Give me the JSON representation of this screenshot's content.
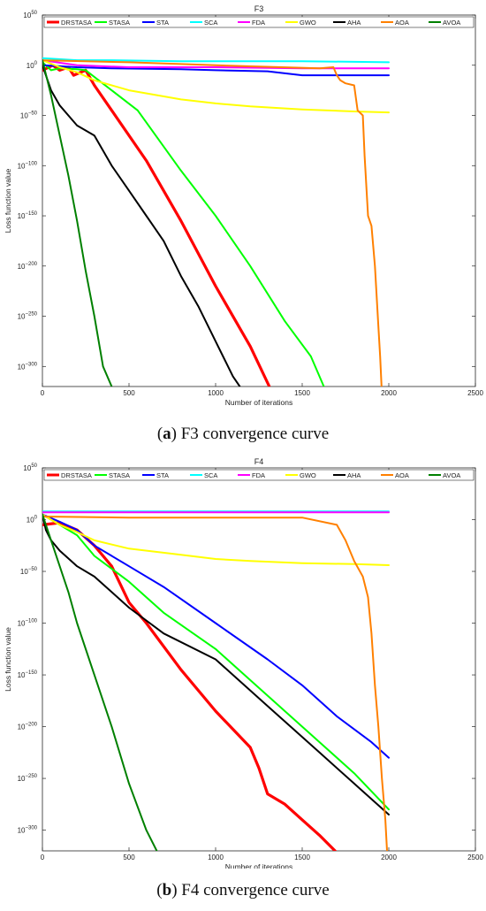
{
  "chart_data": [
    {
      "type": "line",
      "title": "F3",
      "xlabel": "Number of iterations",
      "ylabel": "Loss function value",
      "xlim": [
        0,
        2500
      ],
      "ylim_log10": [
        -320,
        50
      ],
      "y_scale": "log",
      "x_ticks": [
        0,
        500,
        1000,
        1500,
        2000,
        2500
      ],
      "y_ticks_exp": [
        50,
        0,
        -50,
        -100,
        -150,
        -200,
        -250,
        -300
      ],
      "legend": "top, horizontal",
      "caption_letter": "a",
      "caption_text": " F3 convergence curve",
      "series": [
        {
          "name": "DRSTASA",
          "color": "#ff0000",
          "width": 3.2,
          "x": [
            0,
            60,
            100,
            150,
            180,
            250,
            300,
            400,
            600,
            800,
            1000,
            1200,
            1310
          ],
          "log10_y": [
            -5,
            0,
            -5,
            -2,
            -10,
            -5,
            -20,
            -45,
            -95,
            -155,
            -220,
            -280,
            -320
          ]
        },
        {
          "name": "STASA",
          "color": "#00ff00",
          "width": 2,
          "x": [
            0,
            50,
            100,
            200,
            250,
            550,
            800,
            1000,
            1200,
            1400,
            1550,
            1625
          ],
          "log10_y": [
            3,
            -5,
            -3,
            -4,
            -5,
            -45,
            -105,
            -150,
            -200,
            -255,
            -290,
            -320
          ]
        },
        {
          "name": "STA",
          "color": "#0000ff",
          "width": 2,
          "x": [
            0,
            200,
            400,
            800,
            1000,
            1300,
            1500,
            2000
          ],
          "log10_y": [
            0,
            -2,
            -3,
            -4,
            -5,
            -6,
            -10,
            -10
          ]
        },
        {
          "name": "SCA",
          "color": "#00ffff",
          "width": 2,
          "x": [
            0,
            200,
            400,
            800,
            1000,
            1500,
            2000
          ],
          "log10_y": [
            7,
            5,
            5,
            4,
            4,
            4,
            3
          ]
        },
        {
          "name": "FDA",
          "color": "#ff00ff",
          "width": 2,
          "x": [
            0,
            200,
            500,
            1000,
            1500,
            2000
          ],
          "log10_y": [
            5,
            0,
            -2,
            -2,
            -3,
            -3
          ]
        },
        {
          "name": "GWO",
          "color": "#ffff00",
          "width": 2,
          "x": [
            0,
            100,
            200,
            300,
            500,
            800,
            1000,
            1200,
            1500,
            1800,
            2000
          ],
          "log10_y": [
            5,
            -2,
            -7,
            -15,
            -25,
            -34,
            -38,
            -41,
            -44,
            -46,
            -47
          ]
        },
        {
          "name": "AHA",
          "color": "#000000",
          "width": 2,
          "x": [
            0,
            30,
            50,
            100,
            200,
            300,
            400,
            500,
            600,
            700,
            800,
            900,
            1000,
            1100,
            1140
          ],
          "log10_y": [
            0,
            -15,
            -25,
            -40,
            -60,
            -70,
            -100,
            -125,
            -150,
            -175,
            -210,
            -240,
            -275,
            -310,
            -320
          ]
        },
        {
          "name": "AOA",
          "color": "#ff8000",
          "width": 2,
          "x": [
            0,
            500,
            1000,
            1600,
            1680,
            1700,
            1720,
            1750,
            1800,
            1820,
            1850,
            1860,
            1880,
            1900,
            1920,
            1940,
            1950,
            1958
          ],
          "log10_y": [
            5,
            3,
            0,
            -3,
            -2,
            -10,
            -15,
            -18,
            -20,
            -45,
            -50,
            -90,
            -150,
            -160,
            -200,
            -260,
            -290,
            -320
          ]
        },
        {
          "name": "AVOA",
          "color": "#008000",
          "width": 2,
          "x": [
            0,
            50,
            100,
            150,
            200,
            250,
            300,
            350,
            400
          ],
          "log10_y": [
            5,
            -30,
            -70,
            -110,
            -155,
            -205,
            -250,
            -300,
            -320
          ]
        }
      ]
    },
    {
      "type": "line",
      "title": "F4",
      "xlabel": "Number of iterations",
      "ylabel": "Loss function value",
      "xlim": [
        0,
        2500
      ],
      "ylim_log10": [
        -320,
        50
      ],
      "y_scale": "log",
      "x_ticks": [
        0,
        500,
        1000,
        1500,
        2000,
        2500
      ],
      "y_ticks_exp": [
        50,
        0,
        -50,
        -100,
        -150,
        -200,
        -250,
        -300
      ],
      "legend": "top, horizontal",
      "caption_letter": "b",
      "caption_text": " F4 convergence curve",
      "series": [
        {
          "name": "DRSTASA",
          "color": "#ff0000",
          "width": 3.2,
          "x": [
            0,
            100,
            200,
            300,
            400,
            500,
            600,
            800,
            1000,
            1200,
            1250,
            1300,
            1400,
            1500,
            1600,
            1690
          ],
          "log10_y": [
            -5,
            -3,
            -10,
            -25,
            -45,
            -80,
            -100,
            -145,
            -185,
            -220,
            -240,
            -265,
            -275,
            -290,
            -305,
            -320
          ]
        },
        {
          "name": "STASA",
          "color": "#00ff00",
          "width": 2,
          "x": [
            0,
            100,
            200,
            300,
            500,
            700,
            1000,
            1300,
            1600,
            1800,
            2000
          ],
          "log10_y": [
            5,
            -5,
            -15,
            -35,
            -60,
            -90,
            -125,
            -170,
            -215,
            -245,
            -280
          ]
        },
        {
          "name": "STA",
          "color": "#0000ff",
          "width": 2,
          "x": [
            0,
            100,
            200,
            300,
            500,
            700,
            1000,
            1300,
            1500,
            1700,
            1900,
            2000
          ],
          "log10_y": [
            5,
            -2,
            -10,
            -25,
            -45,
            -65,
            -100,
            -135,
            -160,
            -190,
            -215,
            -230
          ]
        },
        {
          "name": "SCA",
          "color": "#00ffff",
          "width": 2,
          "x": [
            0,
            500,
            1000,
            1500,
            2000
          ],
          "log10_y": [
            8,
            8,
            8,
            8,
            8
          ]
        },
        {
          "name": "FDA",
          "color": "#ff00ff",
          "width": 2,
          "x": [
            0,
            500,
            1000,
            1500,
            2000
          ],
          "log10_y": [
            7,
            7,
            7,
            7,
            7
          ]
        },
        {
          "name": "GWO",
          "color": "#ffff00",
          "width": 2,
          "x": [
            0,
            100,
            200,
            300,
            500,
            800,
            1000,
            1200,
            1500,
            1800,
            2000
          ],
          "log10_y": [
            5,
            -5,
            -12,
            -20,
            -28,
            -34,
            -38,
            -40,
            -42,
            -43,
            -44
          ]
        },
        {
          "name": "AHA",
          "color": "#000000",
          "width": 2,
          "x": [
            0,
            20,
            50,
            100,
            200,
            300,
            400,
            500,
            700,
            1000,
            1300,
            1600,
            1800,
            2000
          ],
          "log10_y": [
            5,
            -10,
            -20,
            -30,
            -45,
            -55,
            -70,
            -85,
            -110,
            -135,
            -180,
            -225,
            -255,
            -285
          ]
        },
        {
          "name": "AOA",
          "color": "#ff8000",
          "width": 2,
          "x": [
            0,
            500,
            1000,
            1500,
            1700,
            1750,
            1800,
            1850,
            1880,
            1900,
            1920,
            1940,
            1960,
            1980,
            1990
          ],
          "log10_y": [
            3,
            2,
            2,
            2,
            -5,
            -20,
            -40,
            -55,
            -75,
            -110,
            -160,
            -200,
            -250,
            -290,
            -320
          ]
        },
        {
          "name": "AVOA",
          "color": "#008000",
          "width": 2,
          "x": [
            0,
            50,
            100,
            150,
            200,
            300,
            400,
            500,
            600,
            660
          ],
          "log10_y": [
            5,
            -20,
            -45,
            -70,
            -100,
            -150,
            -200,
            -255,
            -300,
            -320
          ]
        }
      ]
    }
  ]
}
